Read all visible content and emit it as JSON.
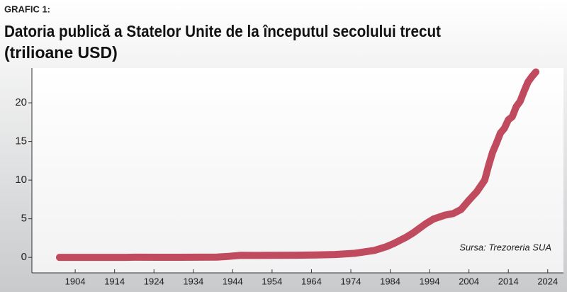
{
  "chart_data": {
    "type": "line",
    "kicker": "GRAFIC 1:",
    "title": "Datoria publică a Statelor Unite de la începutul secolului trecut",
    "subtitle": "(trilioane USD)",
    "source": "Sursa: Trezoreria SUA",
    "x": [
      1900,
      1910,
      1917,
      1919,
      1925,
      1930,
      1935,
      1940,
      1943,
      1946,
      1950,
      1955,
      1960,
      1965,
      1970,
      1975,
      1980,
      1983,
      1985,
      1988,
      1990,
      1993,
      1995,
      1998,
      2000,
      2002,
      2004,
      2006,
      2008,
      2009,
      2010,
      2011,
      2012,
      2013,
      2014,
      2015,
      2016,
      2017,
      2018,
      2019,
      2020,
      2021
    ],
    "series": [
      {
        "name": "Datoria publică",
        "color": "#c14b5e",
        "values": [
          0.002,
          0.003,
          0.006,
          0.025,
          0.021,
          0.016,
          0.029,
          0.043,
          0.137,
          0.269,
          0.257,
          0.274,
          0.286,
          0.317,
          0.371,
          0.533,
          0.908,
          1.38,
          1.82,
          2.6,
          3.23,
          4.35,
          4.97,
          5.48,
          5.67,
          6.2,
          7.4,
          8.5,
          10.0,
          11.9,
          13.6,
          14.8,
          16.1,
          16.7,
          17.8,
          18.2,
          19.5,
          20.2,
          21.5,
          22.7,
          23.4,
          24.0
        ]
      }
    ],
    "xlim": [
      1893,
      2028
    ],
    "ylim": [
      -2,
      24.5
    ],
    "xticks": [
      1904,
      1914,
      1924,
      1934,
      1944,
      1954,
      1964,
      1974,
      1984,
      1994,
      2004,
      2014,
      2024
    ],
    "yticks": [
      0,
      5,
      10,
      15,
      20
    ]
  }
}
